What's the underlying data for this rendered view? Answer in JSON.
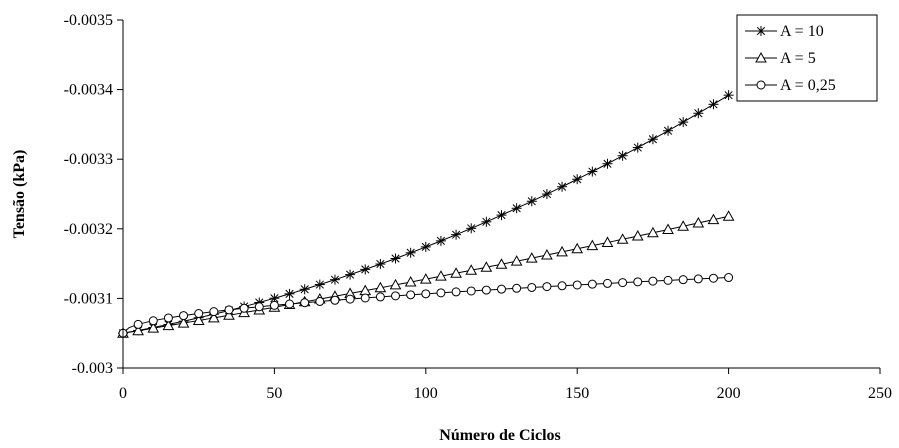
{
  "chart_data": {
    "type": "line",
    "title": "",
    "xlabel": "Número de Ciclos",
    "ylabel": "Tensão (kPa)",
    "xlim": [
      0,
      250
    ],
    "ylim": [
      -0.003,
      -0.0035
    ],
    "y_axis_inverted": true,
    "x_ticks": [
      "0",
      "50",
      "100",
      "150",
      "200",
      "250"
    ],
    "y_ticks": [
      "-0.003",
      "-0.0031",
      "-0.0032",
      "-0.0033",
      "-0.0034",
      "-0.0035"
    ],
    "grid": false,
    "legend_position": "top-right",
    "series": [
      {
        "name": "A = 10",
        "marker": "asterisk",
        "x": [
          0,
          200
        ],
        "y": [
          -0.00305,
          -0.003392
        ]
      },
      {
        "name": "A = 5",
        "marker": "triangle",
        "x": [
          0,
          200
        ],
        "y": [
          -0.00305,
          -0.003218
        ]
      },
      {
        "name": "A = 0,25",
        "marker": "circle",
        "x": [
          0,
          200
        ],
        "y": [
          -0.00305,
          -0.00313
        ]
      }
    ]
  }
}
